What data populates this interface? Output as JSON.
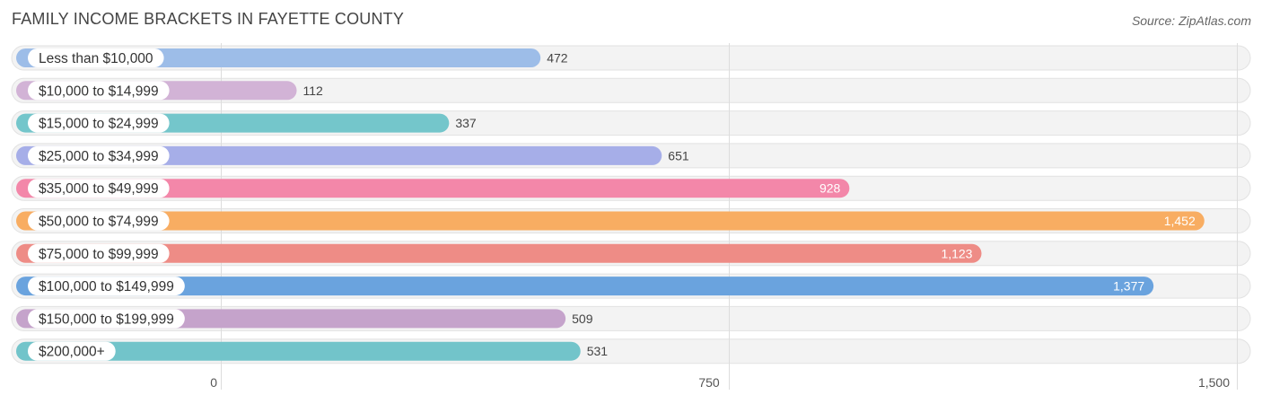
{
  "title": "FAMILY INCOME BRACKETS IN FAYETTE COUNTY",
  "source": "Source: ZipAtlas.com",
  "chart_data": {
    "type": "bar",
    "orientation": "horizontal",
    "title": "FAMILY INCOME BRACKETS IN FAYETTE COUNTY",
    "categories": [
      "Less than $10,000",
      "$10,000 to $14,999",
      "$15,000 to $24,999",
      "$25,000 to $34,999",
      "$35,000 to $49,999",
      "$50,000 to $74,999",
      "$75,000 to $99,999",
      "$100,000 to $149,999",
      "$150,000 to $199,999",
      "$200,000+"
    ],
    "values": [
      472,
      112,
      337,
      651,
      928,
      1452,
      1123,
      1377,
      509,
      531
    ],
    "value_labels": [
      "472",
      "112",
      "337",
      "651",
      "928",
      "1,452",
      "1,123",
      "1,377",
      "509",
      "531"
    ],
    "colors": [
      "#9dbde8",
      "#d2b3d6",
      "#74c6cb",
      "#a6aee8",
      "#f387a9",
      "#f8ad62",
      "#ee8c86",
      "#6aa3de",
      "#c5a3cb",
      "#72c4ca"
    ],
    "xlim": [
      0,
      1500
    ],
    "xticks": [
      0,
      750,
      1500
    ],
    "xtick_labels": [
      "0",
      "750",
      "1,500"
    ],
    "grid": true,
    "xlabel": "",
    "ylabel": ""
  }
}
